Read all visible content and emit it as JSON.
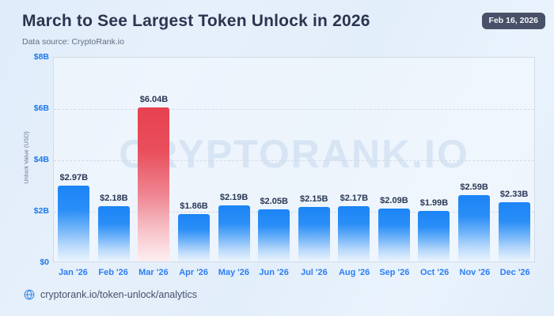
{
  "header": {
    "title": "March to See Largest Token Unlock in 2026",
    "subtitle": "Data source: CryptoRank.io",
    "date_badge": "Feb 16, 2026"
  },
  "chart_data": {
    "type": "bar",
    "categories": [
      "Jan '26",
      "Feb '26",
      "Mar '26",
      "Apr '26",
      "May '26",
      "Jun '26",
      "Jul '26",
      "Aug '26",
      "Sep '26",
      "Oct '26",
      "Nov '26",
      "Dec '26"
    ],
    "values": [
      2.97,
      2.18,
      6.04,
      1.86,
      2.19,
      2.05,
      2.15,
      2.17,
      2.09,
      1.99,
      2.59,
      2.33
    ],
    "value_labels": [
      "$2.97B",
      "$2.18B",
      "$6.04B",
      "$1.86B",
      "$2.19B",
      "$2.05B",
      "$2.15B",
      "$2.17B",
      "$2.09B",
      "$1.99B",
      "$2.59B",
      "$2.33B"
    ],
    "highlight_index": 2,
    "ylabel": "Unlock Value (USD)",
    "ylim": [
      0,
      8
    ],
    "yticks": [
      {
        "value": 0,
        "label": "$0"
      },
      {
        "value": 2,
        "label": "$2B"
      },
      {
        "value": 4,
        "label": "$4B"
      },
      {
        "value": 6,
        "label": "$6B"
      },
      {
        "value": 8,
        "label": "$8B"
      }
    ],
    "gridline_values": [
      2,
      4,
      6
    ],
    "grid": "dashed horizontal",
    "bar_color": "#1b84f6",
    "highlight_color": "#e74150",
    "watermark": "CRYPTORANK.IO"
  },
  "footer": {
    "url": "cryptorank.io/token-unlock/analytics",
    "icon": "globe"
  },
  "colors": {
    "accent_blue": "#2c7ef2",
    "axis_blue": "#1a78ea",
    "title_navy": "#2b3550",
    "badge_bg": "#485168",
    "background": "#e4effb"
  }
}
